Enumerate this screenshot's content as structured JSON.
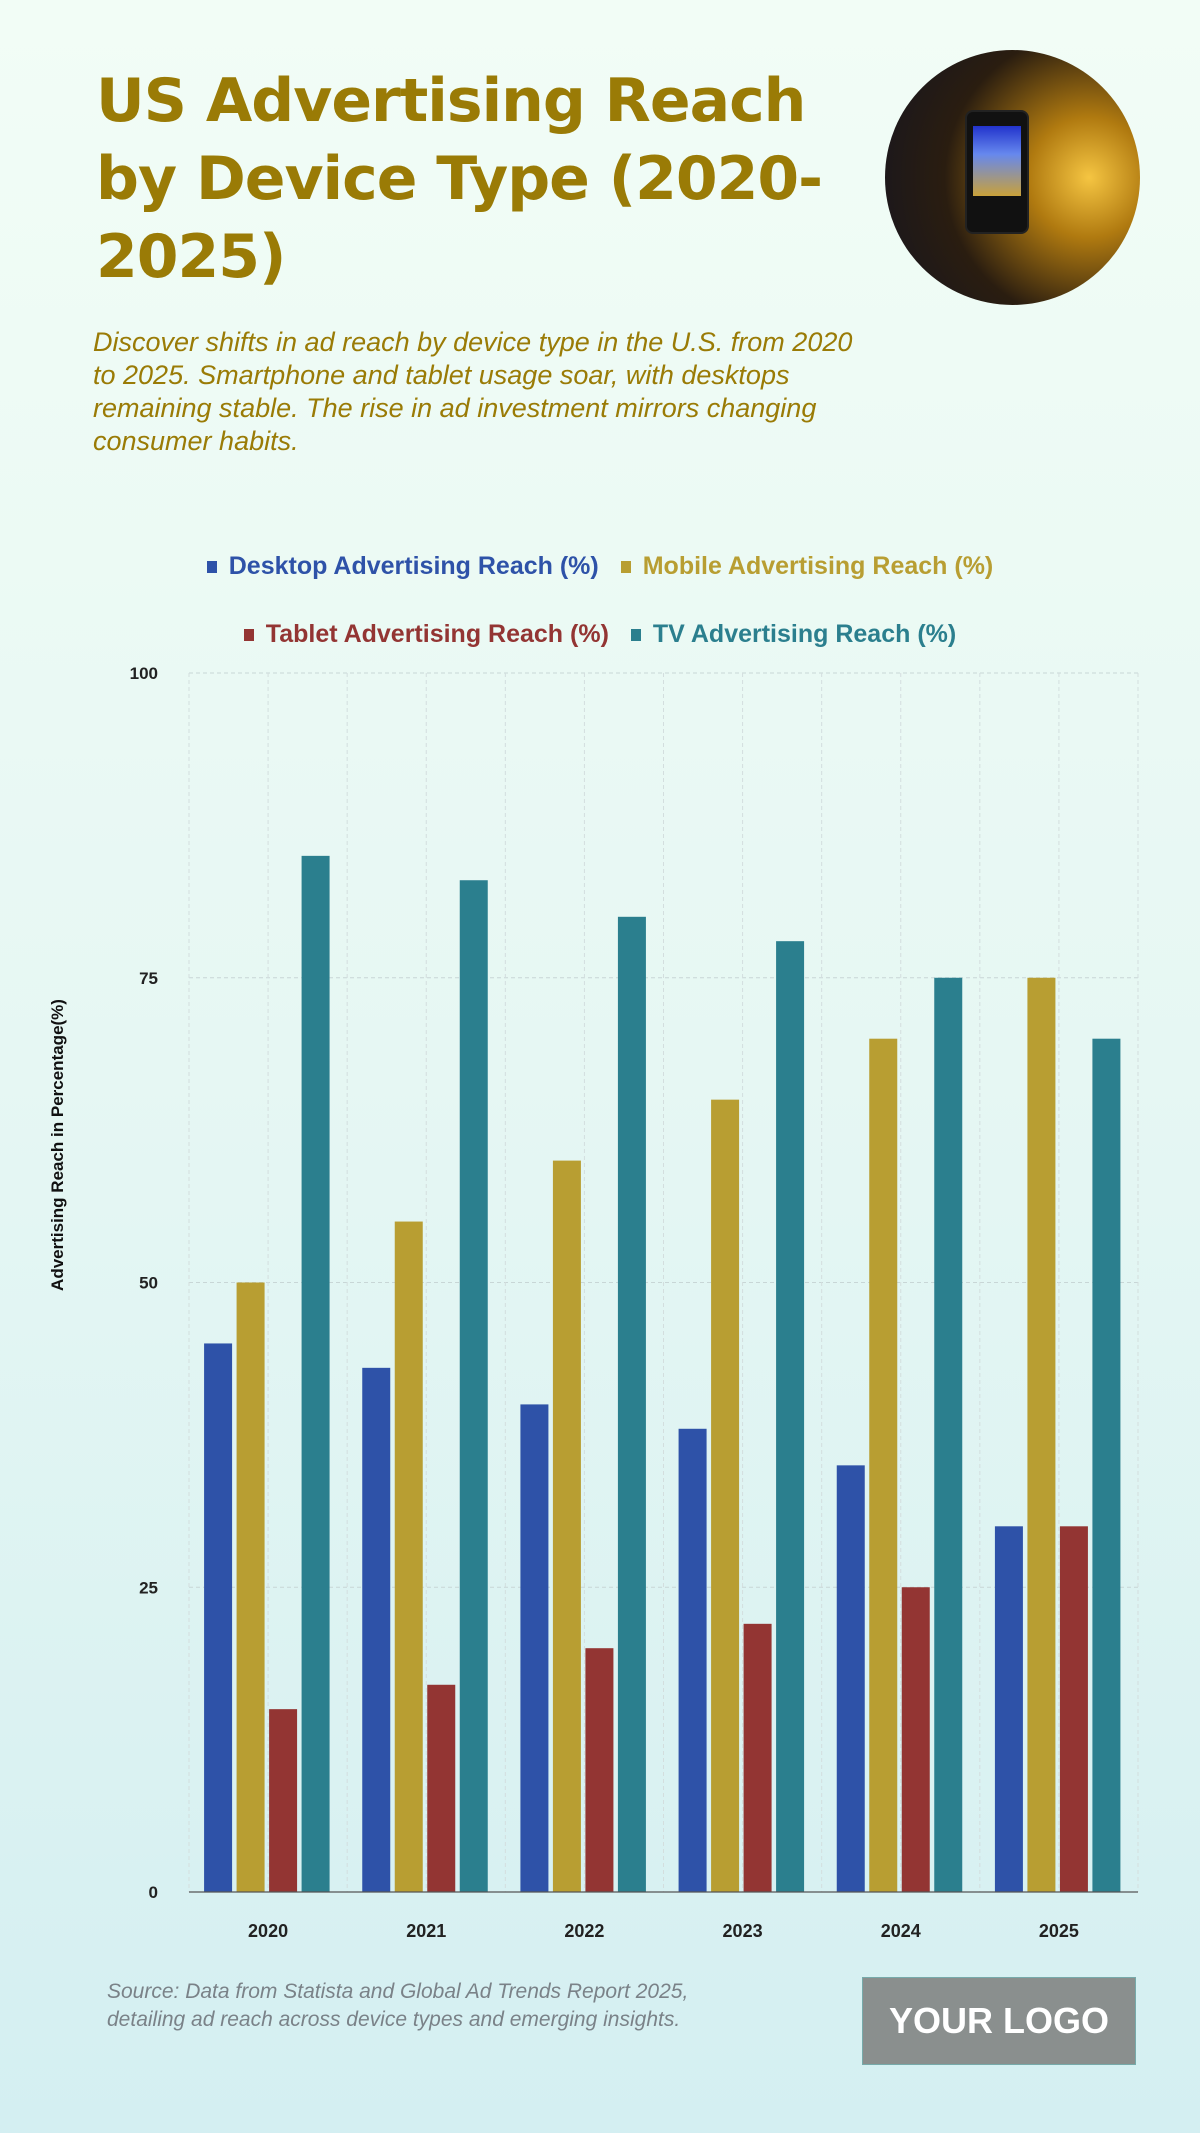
{
  "header": {
    "title": "US Advertising Reach by Device Type (2020-2025)",
    "subtitle": "Discover shifts in ad reach by device type in the U.S. from 2020 to 2025. Smartphone and tablet usage soar, with desktops remaining stable. The rise in ad investment mirrors changing consumer habits."
  },
  "chart_data": {
    "type": "bar",
    "categories": [
      "2020",
      "2021",
      "2022",
      "2023",
      "2024",
      "2025"
    ],
    "series": [
      {
        "name": "Desktop Advertising Reach (%)",
        "color": "#2e52a8",
        "values": [
          45,
          43,
          40,
          38,
          35,
          30
        ]
      },
      {
        "name": "Mobile Advertising Reach (%)",
        "color": "#b89e32",
        "values": [
          50,
          55,
          60,
          65,
          70,
          75
        ]
      },
      {
        "name": "Tablet Advertising Reach (%)",
        "color": "#933533",
        "values": [
          15,
          17,
          20,
          22,
          25,
          30
        ]
      },
      {
        "name": "TV Advertising Reach (%)",
        "color": "#2b7f8e",
        "values": [
          85,
          83,
          80,
          78,
          75,
          70
        ]
      }
    ],
    "xlabel": "",
    "ylabel": "Advertising Reach in Percentage(%)",
    "ylim": [
      0,
      100
    ],
    "yticks": [
      "0",
      "25",
      "50",
      "75",
      "100"
    ],
    "grid": true,
    "legend_placement": "top"
  },
  "footer": {
    "source": "Source: Data from Statista and Global Ad Trends Report 2025, detailing ad reach across device types and emerging insights.",
    "logo": "YOUR LOGO"
  }
}
